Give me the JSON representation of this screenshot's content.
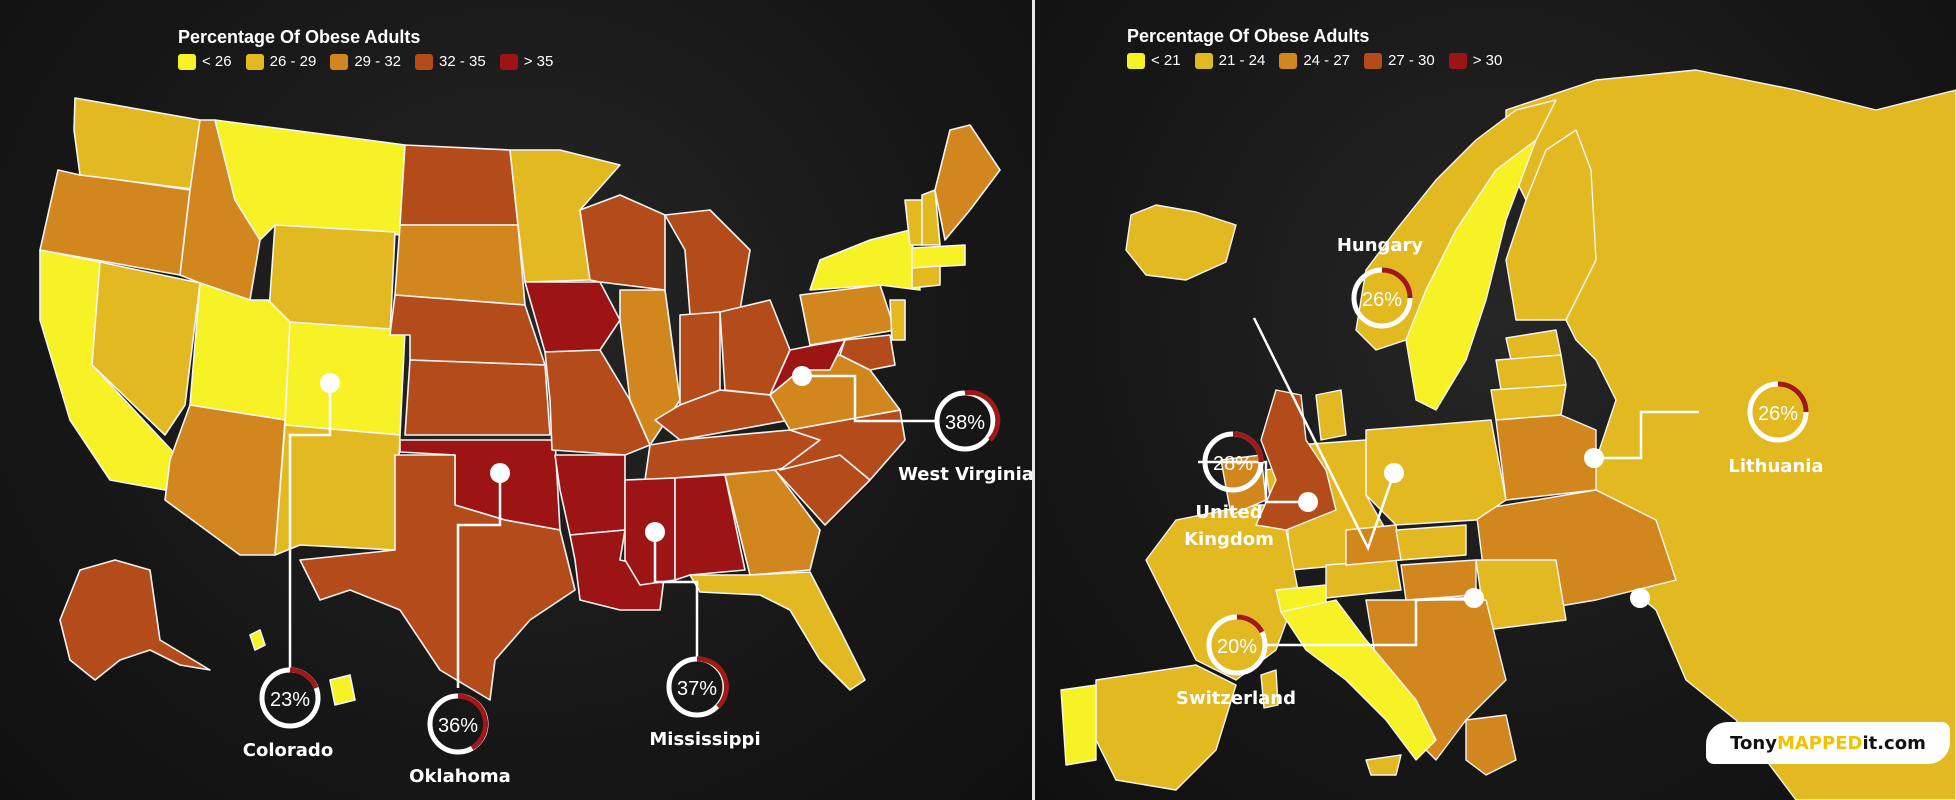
{
  "us_panel": {
    "legend_title": "Percentage Of Obese Adults",
    "legend": [
      {
        "label": "< 26",
        "color": "#f7f225"
      },
      {
        "label": "26 - 29",
        "color": "#e3b921"
      },
      {
        "label": "29 - 32",
        "color": "#d1871d"
      },
      {
        "label": "32 - 35",
        "color": "#b34c1a"
      },
      {
        "label": "> 35",
        "color": "#9c1414"
      }
    ],
    "callouts": [
      {
        "id": "colorado",
        "label": "Colorado",
        "value_text": "23%",
        "value": 23
      },
      {
        "id": "oklahoma",
        "label": "Oklahoma",
        "value_text": "36%",
        "value": 36
      },
      {
        "id": "mississippi",
        "label": "Mississippi",
        "value_text": "37%",
        "value": 37
      },
      {
        "id": "west-virginia",
        "label": "West Virginia",
        "value_text": "38%",
        "value": 38
      }
    ]
  },
  "eu_panel": {
    "legend_title": "Percentage Of Obese Adults",
    "legend": [
      {
        "label": "< 21",
        "color": "#f7f225"
      },
      {
        "label": "21 - 24",
        "color": "#e3b921"
      },
      {
        "label": "24 - 27",
        "color": "#d1871d"
      },
      {
        "label": "27 - 30",
        "color": "#b34c1a"
      },
      {
        "label": "> 30",
        "color": "#9c1414"
      }
    ],
    "callouts": [
      {
        "id": "hungary",
        "label": "Hungary",
        "value_text": "26%",
        "value": 26
      },
      {
        "id": "united-kingdom",
        "label_line1": "United",
        "label_line2": "Kingdom",
        "value_text": "28%",
        "value": 28
      },
      {
        "id": "switzerland",
        "label": "Switzerland",
        "value_text": "20%",
        "value": 20
      },
      {
        "id": "lithuania",
        "label": "Lithuania",
        "value_text": "26%",
        "value": 26
      }
    ]
  },
  "credit": {
    "prefix": "Tony",
    "highlight": "MAPPED",
    "suffix": "it.com"
  }
}
